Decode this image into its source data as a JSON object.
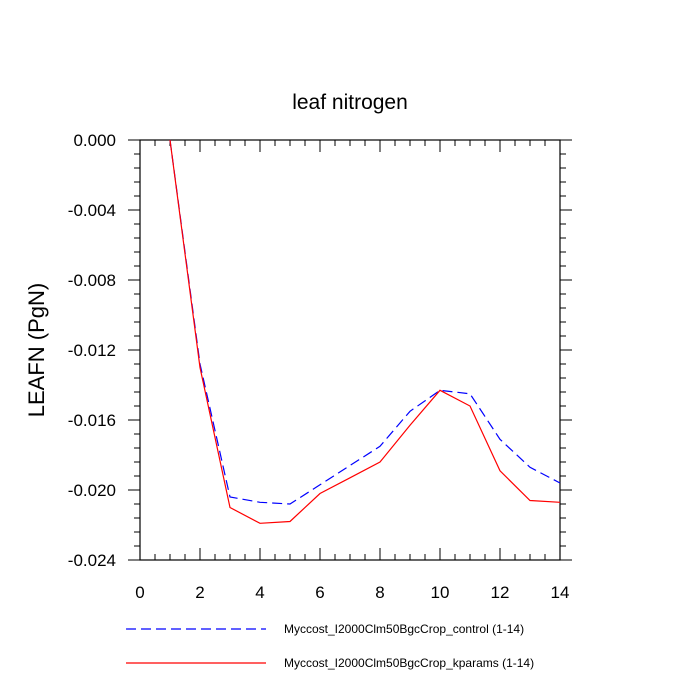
{
  "chart_data": {
    "type": "line",
    "title": "leaf nitrogen",
    "xlabel": "",
    "ylabel": "LEAFN  (PgN)",
    "xlim": [
      0,
      14
    ],
    "ylim": [
      -0.024,
      0.0
    ],
    "x_ticks": [
      "0",
      "2",
      "4",
      "6",
      "8",
      "10",
      "12",
      "14"
    ],
    "y_ticks": [
      "0.000",
      "-0.004",
      "-0.008",
      "-0.012",
      "-0.016",
      "-0.020",
      "-0.024"
    ],
    "grid": false,
    "legend_position": "bottom",
    "series": [
      {
        "name": "Myccost_I2000Clm50BgcCrop_control (1-14)",
        "color": "#0000ff",
        "style": "dashed",
        "x": [
          1,
          2,
          3,
          4,
          5,
          6,
          7,
          8,
          9,
          10,
          11,
          12,
          13,
          14
        ],
        "values": [
          0.0,
          -0.0128,
          -0.0204,
          -0.0207,
          -0.0208,
          -0.0197,
          -0.0186,
          -0.0175,
          -0.0155,
          -0.0143,
          -0.0145,
          -0.0171,
          -0.0187,
          -0.0196
        ]
      },
      {
        "name": "Myccost_I2000Clm50BgcCrop_kparams (1-14)",
        "color": "#ff0000",
        "style": "solid",
        "x": [
          1,
          2,
          3,
          4,
          5,
          6,
          7,
          8,
          9,
          10,
          11,
          12,
          13,
          14
        ],
        "values": [
          0.0,
          -0.013,
          -0.021,
          -0.0219,
          -0.0218,
          -0.0202,
          -0.0193,
          -0.0184,
          -0.0163,
          -0.0143,
          -0.0152,
          -0.0189,
          -0.0206,
          -0.0207
        ]
      }
    ]
  }
}
